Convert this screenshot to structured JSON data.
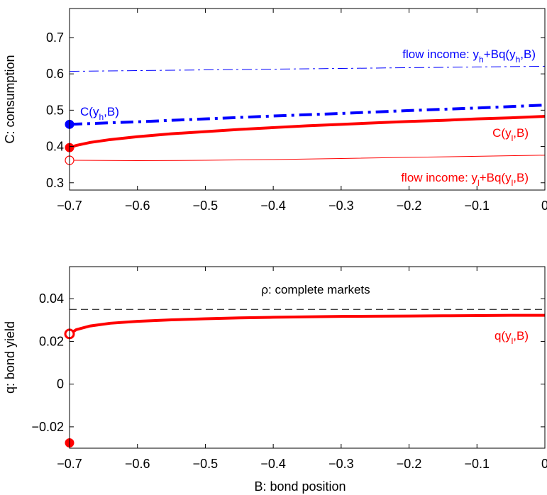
{
  "chart_data": [
    {
      "type": "line",
      "title": "",
      "xlabel": "",
      "ylabel": "C: consumption",
      "xlim": [
        -0.7,
        0
      ],
      "ylim": [
        0.28,
        0.78
      ],
      "xticks": [
        -0.7,
        -0.6,
        -0.5,
        -0.4,
        -0.3,
        -0.2,
        -0.1,
        0
      ],
      "xtick_labels": [
        "−0.7",
        "−0.6",
        "−0.5",
        "−0.4",
        "−0.3",
        "−0.2",
        "−0.1",
        "0"
      ],
      "yticks": [
        0.3,
        0.4,
        0.5,
        0.6,
        0.7
      ],
      "ytick_labels": [
        "0.3",
        "0.4",
        "0.5",
        "0.6",
        "0.7"
      ],
      "grid": false,
      "series": [
        {
          "key": "flow_high",
          "color": "#0000ff",
          "style": "dashdot",
          "width": 1,
          "x": [
            -0.7,
            -0.6,
            -0.5,
            -0.4,
            -0.3,
            -0.2,
            -0.1,
            0
          ],
          "y": [
            0.607,
            0.609,
            0.611,
            0.613,
            0.615,
            0.617,
            0.619,
            0.621
          ]
        },
        {
          "key": "c_high",
          "color": "#0000ff",
          "style": "dashdot",
          "width": 4,
          "x": [
            -0.7,
            -0.6,
            -0.5,
            -0.4,
            -0.3,
            -0.2,
            -0.1,
            0
          ],
          "y": [
            0.461,
            0.468,
            0.476,
            0.484,
            0.491,
            0.499,
            0.506,
            0.514
          ]
        },
        {
          "key": "c_low",
          "color": "#ff0000",
          "style": "solid",
          "width": 4,
          "x": [
            -0.7,
            -0.69,
            -0.67,
            -0.64,
            -0.6,
            -0.55,
            -0.5,
            -0.45,
            -0.4,
            -0.35,
            -0.3,
            -0.25,
            -0.2,
            -0.15,
            -0.1,
            -0.05,
            0
          ],
          "y": [
            0.397,
            0.403,
            0.411,
            0.419,
            0.427,
            0.435,
            0.441,
            0.447,
            0.452,
            0.457,
            0.461,
            0.465,
            0.469,
            0.472,
            0.476,
            0.479,
            0.483
          ]
        },
        {
          "key": "flow_low",
          "color": "#ff0000",
          "style": "solid",
          "width": 1,
          "x": [
            -0.7,
            -0.6,
            -0.5,
            -0.4,
            -0.3,
            -0.2,
            -0.1,
            0
          ],
          "y": [
            0.362,
            0.361,
            0.362,
            0.364,
            0.367,
            0.37,
            0.373,
            0.376
          ]
        }
      ],
      "markers": [
        {
          "x": -0.7,
          "y": 0.461,
          "color": "#0000ff",
          "filled": true
        },
        {
          "x": -0.7,
          "y": 0.397,
          "color": "#ff0000",
          "filled": true
        },
        {
          "x": -0.7,
          "y": 0.362,
          "color": "#ff0000",
          "filled": false
        }
      ],
      "annotations": {
        "flow_high": {
          "text": "flow income: y",
          "sub": "h",
          "rest": "+Bq(y",
          "sub2": "h",
          "end": ",B)",
          "color": "#0000ff"
        },
        "c_high": {
          "text": "C(y",
          "sub": "h",
          "end": ",B)",
          "color": "#0000ff"
        },
        "c_low": {
          "text": "C(y",
          "sub": "l",
          "end": ",B)",
          "color": "#ff0000"
        },
        "flow_low": {
          "text": "flow income: y",
          "sub": "l",
          "rest": "+Bq(y",
          "sub2": "l",
          "end": ",B)",
          "color": "#ff0000"
        }
      }
    },
    {
      "type": "line",
      "title": "",
      "xlabel": "B: bond position",
      "ylabel": "q: bond yield",
      "xlim": [
        -0.7,
        0
      ],
      "ylim": [
        -0.03,
        0.055
      ],
      "xticks": [
        -0.7,
        -0.6,
        -0.5,
        -0.4,
        -0.3,
        -0.2,
        -0.1,
        0
      ],
      "xtick_labels": [
        "−0.7",
        "−0.6",
        "−0.5",
        "−0.4",
        "−0.3",
        "−0.2",
        "−0.1",
        "0"
      ],
      "yticks": [
        -0.02,
        0,
        0.02,
        0.04
      ],
      "ytick_labels": [
        "−0.02",
        "0",
        "0.02",
        "0.04"
      ],
      "grid": false,
      "series": [
        {
          "key": "rho",
          "color": "#000000",
          "style": "dashed",
          "width": 1,
          "x": [
            -0.7,
            0
          ],
          "y": [
            0.035,
            0.035
          ]
        },
        {
          "key": "q_low",
          "color": "#ff0000",
          "style": "solid",
          "width": 4,
          "x": [
            -0.7,
            -0.69,
            -0.67,
            -0.64,
            -0.6,
            -0.55,
            -0.5,
            -0.45,
            -0.4,
            -0.35,
            -0.3,
            -0.25,
            -0.2,
            -0.15,
            -0.1,
            -0.05,
            0
          ],
          "y": [
            0.0235,
            0.0255,
            0.0272,
            0.0285,
            0.0294,
            0.0301,
            0.0306,
            0.031,
            0.0313,
            0.0315,
            0.0317,
            0.0318,
            0.0319,
            0.032,
            0.0321,
            0.0322,
            0.0322
          ]
        }
      ],
      "markers": [
        {
          "x": -0.7,
          "y": 0.0235,
          "color": "#ff0000",
          "filled": false
        },
        {
          "x": -0.7,
          "y": -0.0275,
          "color": "#ff0000",
          "filled": true
        }
      ],
      "annotations": {
        "rho": {
          "text": "ρ: complete markets",
          "color": "#000000"
        },
        "q_low": {
          "text": "q(y",
          "sub": "l",
          "end": ",B)",
          "color": "#ff0000"
        }
      }
    }
  ]
}
